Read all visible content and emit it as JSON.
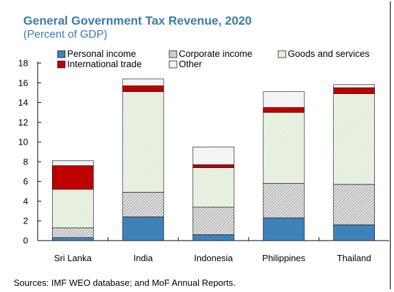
{
  "chart_data": {
    "type": "bar",
    "stacked": true,
    "title": "General Government Tax Revenue, 2020",
    "subtitle": "(Percent of GDP)",
    "categories": [
      "Sri Lanka",
      "India",
      "Indonesia",
      "Philippines",
      "Thailand"
    ],
    "series": [
      {
        "name": "Personal income",
        "values": [
          0.3,
          2.4,
          0.6,
          2.3,
          1.6
        ]
      },
      {
        "name": "Corporate income",
        "values": [
          1.0,
          2.5,
          2.8,
          3.5,
          4.1
        ]
      },
      {
        "name": "Goods and services",
        "values": [
          3.9,
          10.2,
          4.0,
          7.2,
          9.2
        ]
      },
      {
        "name": "International trade",
        "values": [
          2.4,
          0.6,
          0.3,
          0.5,
          0.6
        ]
      },
      {
        "name": "Other",
        "values": [
          0.5,
          0.7,
          1.8,
          1.6,
          0.3
        ]
      }
    ],
    "colors": {
      "Personal income": "#3f82b9",
      "Corporate income": "#8a8a8a",
      "Goods and services": "#dbe9d2",
      "International trade": "#c00000",
      "Other": "#f4f4f4"
    },
    "patterns": {
      "Personal income": "solid",
      "Corporate income": "hatched",
      "Goods and services": "hatched",
      "International trade": "solid",
      "Other": "hatched"
    },
    "ylim": [
      0,
      18
    ],
    "yticks": [
      0,
      2,
      4,
      6,
      8,
      10,
      12,
      14,
      16,
      18
    ],
    "legend_position": "top",
    "grid": false,
    "source": "Sources: IMF WEO database; and MoF Annual Reports."
  }
}
